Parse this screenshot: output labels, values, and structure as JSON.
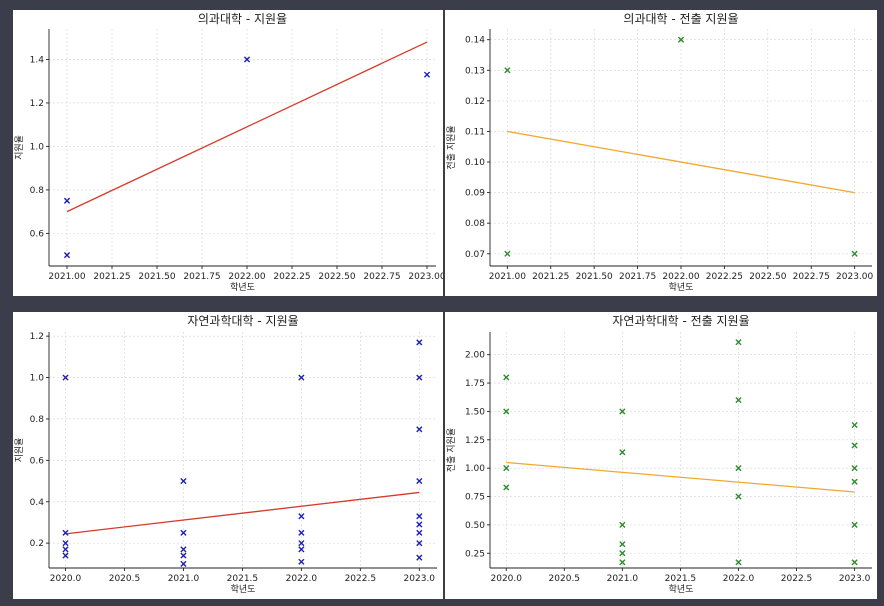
{
  "colors": {
    "points_blue": "#1f1fb5",
    "points_green": "#2e8b2e",
    "line_red": "#d63a2a",
    "line_orange": "#f0a830"
  },
  "chart_data": [
    {
      "type": "scatter",
      "title": "의과대학 - 지원율",
      "xlabel": "학년도",
      "ylabel": "지원율",
      "xlim": [
        2020.9,
        2023.05
      ],
      "ylim": [
        0.45,
        1.54
      ],
      "xticks": [
        "2021.00",
        "2021.25",
        "2021.50",
        "2021.75",
        "2022.00",
        "2022.25",
        "2022.50",
        "2022.75",
        "2023.00"
      ],
      "yticks": [
        "0.6",
        "0.8",
        "1.0",
        "1.2",
        "1.4"
      ],
      "marker": "x",
      "point_color": "#1f1fb5",
      "points": [
        [
          2021,
          0.75
        ],
        [
          2021,
          0.5
        ],
        [
          2022,
          1.4
        ],
        [
          2023,
          1.33
        ]
      ],
      "trendline": {
        "color": "#d63a2a",
        "from": [
          2021,
          0.7
        ],
        "to": [
          2023,
          1.48
        ]
      },
      "grid": true
    },
    {
      "type": "scatter",
      "title": "의과대학 - 전출 지원율",
      "xlabel": "학년도",
      "ylabel": "전출 지원율",
      "xlim": [
        2020.9,
        2023.1
      ],
      "ylim": [
        0.066,
        0.1435
      ],
      "xticks": [
        "2021.00",
        "2021.25",
        "2021.50",
        "2021.75",
        "2022.00",
        "2022.25",
        "2022.50",
        "2022.75",
        "2023.00"
      ],
      "yticks": [
        "0.07",
        "0.08",
        "0.09",
        "0.10",
        "0.11",
        "0.12",
        "0.13",
        "0.14"
      ],
      "marker": "x",
      "point_color": "#2e8b2e",
      "points": [
        [
          2021,
          0.13
        ],
        [
          2021,
          0.07
        ],
        [
          2022,
          0.14
        ],
        [
          2023,
          0.07
        ]
      ],
      "trendline": {
        "color": "#f0a830",
        "from": [
          2021,
          0.11
        ],
        "to": [
          2023,
          0.09
        ]
      },
      "grid": true
    },
    {
      "type": "scatter",
      "title": "자연과학대학 - 지원율",
      "xlabel": "학년도",
      "ylabel": "지원율",
      "xlim": [
        2019.86,
        2023.15
      ],
      "ylim": [
        0.08,
        1.22
      ],
      "xticks": [
        "2020.0",
        "2020.5",
        "2021.0",
        "2021.5",
        "2022.0",
        "2022.5",
        "2023.0"
      ],
      "yticks": [
        "0.2",
        "0.4",
        "0.6",
        "0.8",
        "1.0",
        "1.2"
      ],
      "marker": "x",
      "point_color": "#1f1fb5",
      "points": [
        [
          2020,
          1.0
        ],
        [
          2020,
          0.25
        ],
        [
          2020,
          0.2
        ],
        [
          2020,
          0.17
        ],
        [
          2020,
          0.14
        ],
        [
          2021,
          0.5
        ],
        [
          2021,
          0.25
        ],
        [
          2021,
          0.17
        ],
        [
          2021,
          0.14
        ],
        [
          2021,
          0.1
        ],
        [
          2022,
          1.0
        ],
        [
          2022,
          0.33
        ],
        [
          2022,
          0.25
        ],
        [
          2022,
          0.2
        ],
        [
          2022,
          0.17
        ],
        [
          2022,
          0.11
        ],
        [
          2023,
          1.17
        ],
        [
          2023,
          1.0
        ],
        [
          2023,
          0.75
        ],
        [
          2023,
          0.5
        ],
        [
          2023,
          0.33
        ],
        [
          2023,
          0.29
        ],
        [
          2023,
          0.25
        ],
        [
          2023,
          0.2
        ],
        [
          2023,
          0.13
        ]
      ],
      "trendline": {
        "color": "#d63a2a",
        "from": [
          2020,
          0.245
        ],
        "to": [
          2023,
          0.445
        ]
      },
      "grid": true
    },
    {
      "type": "scatter",
      "title": "자연과학대학 - 전출 지원율",
      "xlabel": "학년도",
      "ylabel": "전출 지원율",
      "xlim": [
        2019.86,
        2023.15
      ],
      "ylim": [
        0.12,
        2.2
      ],
      "xticks": [
        "2020.0",
        "2020.5",
        "2021.0",
        "2021.5",
        "2022.0",
        "2022.5",
        "2023.0"
      ],
      "yticks": [
        "0.25",
        "0.50",
        "0.75",
        "1.00",
        "1.25",
        "1.50",
        "1.75",
        "2.00"
      ],
      "marker": "x",
      "point_color": "#2e8b2e",
      "points": [
        [
          2020,
          1.8
        ],
        [
          2020,
          1.5
        ],
        [
          2020,
          1.0
        ],
        [
          2020,
          0.83
        ],
        [
          2021,
          1.5
        ],
        [
          2021,
          1.14
        ],
        [
          2021,
          0.5
        ],
        [
          2021,
          0.33
        ],
        [
          2021,
          0.25
        ],
        [
          2021,
          0.17
        ],
        [
          2022,
          2.11
        ],
        [
          2022,
          1.6
        ],
        [
          2022,
          1.0
        ],
        [
          2022,
          0.75
        ],
        [
          2022,
          0.17
        ],
        [
          2023,
          1.38
        ],
        [
          2023,
          1.2
        ],
        [
          2023,
          1.0
        ],
        [
          2023,
          0.88
        ],
        [
          2023,
          0.5
        ],
        [
          2023,
          0.17
        ]
      ],
      "trendline": {
        "color": "#f0a830",
        "from": [
          2020,
          1.05
        ],
        "to": [
          2023,
          0.79
        ]
      },
      "grid": true
    }
  ]
}
